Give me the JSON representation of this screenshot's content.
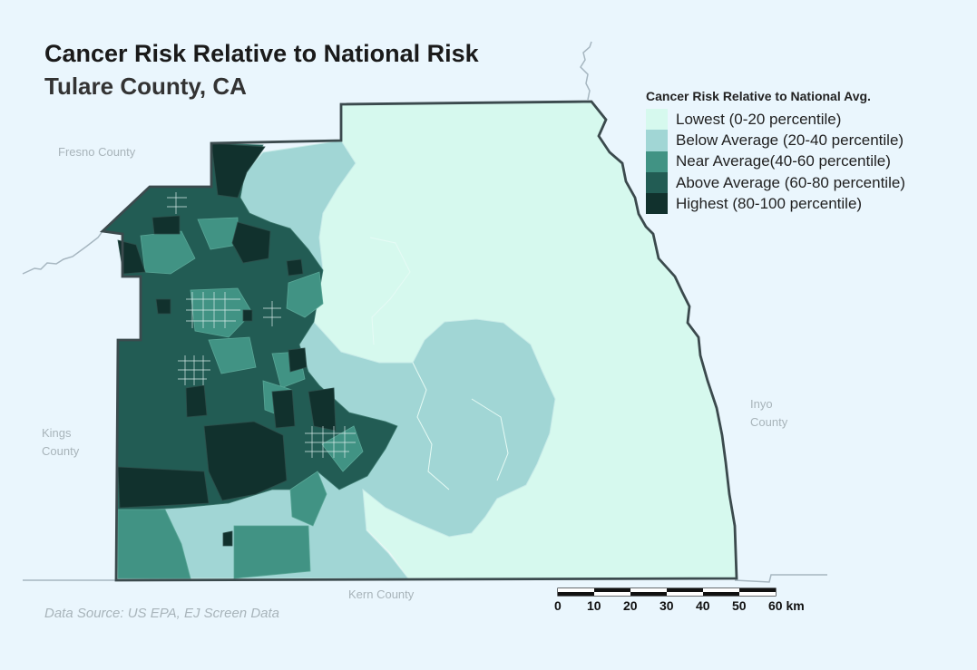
{
  "title": "Cancer Risk Relative to National Risk",
  "subtitle": "Tulare County, CA",
  "legend": {
    "title": "Cancer Risk Relative to National Avg.",
    "items": [
      {
        "label": "Lowest (0-20 percentile)",
        "color": "#d6f9ee"
      },
      {
        "label": "Below Average (20-40 percentile)",
        "color": "#a1d6d5"
      },
      {
        "label": "Near Average(40-60 percentile)",
        "color": "#419384"
      },
      {
        "label": "Above Average (60-80 percentile)",
        "color": "#225c54"
      },
      {
        "label": "Highest (80-100 percentile)",
        "color": "#11312d"
      }
    ]
  },
  "neighbors": {
    "fresno": "Fresno County",
    "kings_line1": "Kings",
    "kings_line2": "County",
    "inyo_line1": "Inyo",
    "inyo_line2": "County",
    "kern": "Kern County"
  },
  "source": "Data Source: US EPA, EJ Screen Data",
  "scalebar": {
    "ticks": [
      "0",
      "10",
      "20",
      "30",
      "40",
      "50",
      "60 km"
    ]
  },
  "colors": {
    "background": "#eaf6fd",
    "boundary": "#3b4a4d",
    "neighbor_line": "#a6b6c0"
  }
}
